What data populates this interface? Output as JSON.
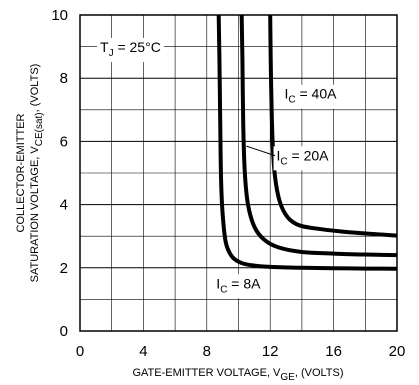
{
  "chart_data": {
    "type": "line",
    "xlim": [
      0,
      20
    ],
    "ylim": [
      0,
      10
    ],
    "x_ticks": [
      "0",
      "4",
      "8",
      "12",
      "16",
      "20"
    ],
    "y_ticks": [
      "0",
      "2",
      "4",
      "6",
      "8",
      "10"
    ],
    "x_tick_values": [
      0,
      4,
      8,
      12,
      16,
      20
    ],
    "y_tick_values": [
      0,
      2,
      4,
      6,
      8,
      10
    ],
    "grid": true,
    "xlabel": {
      "prefix": "GATE-EMITTER VOLTAGE, V",
      "sub": "GE",
      "suffix": ", (VOLTS)"
    },
    "ylabel_line1": "COLLECTOR-EMITTER",
    "ylabel_line2": {
      "prefix": "SATURATION VOLTAGE, V",
      "sub": "CE(sat)",
      "suffix": ", (VOLTS)"
    },
    "condition": {
      "prefix": "T",
      "sub": "J",
      "suffix": " = 25°C"
    },
    "series": [
      {
        "name": {
          "prefix": "I",
          "sub": "C",
          "suffix": " = 8A"
        },
        "label_at": [
          8.6,
          1.35
        ],
        "x": [
          8.75,
          8.8,
          8.85,
          8.9,
          9.0,
          9.2,
          9.6,
          10.2,
          11.0,
          12.0,
          14.0,
          17.0,
          20.0
        ],
        "y": [
          10.0,
          8.5,
          6.5,
          4.8,
          3.7,
          2.8,
          2.35,
          2.15,
          2.07,
          2.03,
          2.0,
          1.98,
          1.97
        ]
      },
      {
        "name": {
          "prefix": "I",
          "sub": "C",
          "suffix": " = 20A"
        },
        "label_at": [
          12.4,
          5.4
        ],
        "pointer_from": [
          12.3,
          5.55
        ],
        "pointer_to": [
          10.5,
          5.85
        ],
        "x": [
          10.2,
          10.25,
          10.3,
          10.4,
          10.6,
          11.0,
          11.6,
          12.5,
          14.0,
          16.0,
          18.0,
          20.0
        ],
        "y": [
          10.0,
          8.5,
          6.5,
          5.0,
          4.0,
          3.3,
          2.9,
          2.65,
          2.5,
          2.45,
          2.42,
          2.4
        ]
      },
      {
        "name": {
          "prefix": "I",
          "sub": "C",
          "suffix": " = 40A"
        },
        "label_at": [
          12.9,
          7.35
        ],
        "x": [
          12.0,
          12.05,
          12.15,
          12.3,
          12.6,
          13.1,
          13.8,
          14.8,
          16.5,
          18.5,
          20.0
        ],
        "y": [
          10.0,
          8.0,
          6.0,
          4.9,
          4.1,
          3.6,
          3.35,
          3.25,
          3.15,
          3.07,
          3.02
        ]
      }
    ]
  }
}
